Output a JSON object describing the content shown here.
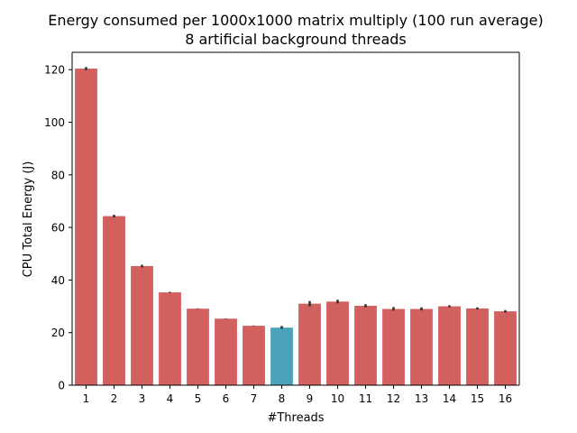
{
  "chart_data": {
    "type": "bar",
    "title": [
      "Energy consumed per 1000x1000 matrix multiply (100 run average)",
      "8 artificial background threads"
    ],
    "xlabel": "#Threads",
    "ylabel": "CPU Total Energy (J)",
    "categories": [
      "1",
      "2",
      "3",
      "4",
      "5",
      "6",
      "7",
      "8",
      "9",
      "10",
      "11",
      "12",
      "13",
      "14",
      "15",
      "16"
    ],
    "values": [
      120.4,
      64.3,
      45.3,
      35.3,
      29.1,
      25.3,
      22.6,
      21.9,
      31.0,
      31.8,
      30.2,
      29.0,
      29.0,
      30.0,
      29.2,
      28.1
    ],
    "error_low": [
      119.8,
      63.8,
      44.8,
      35.1,
      29.0,
      25.2,
      22.5,
      21.4,
      30.0,
      31.1,
      29.6,
      28.3,
      28.4,
      29.6,
      28.8,
      27.6
    ],
    "error_high": [
      121.0,
      64.8,
      45.8,
      35.5,
      29.2,
      25.4,
      22.7,
      22.5,
      32.0,
      32.5,
      30.8,
      29.7,
      29.6,
      30.4,
      29.6,
      28.6
    ],
    "ylim": [
      0,
      126.6
    ],
    "yticks": [
      0,
      20,
      40,
      60,
      80,
      100,
      120
    ],
    "colors": {
      "bar": "#d1605e",
      "highlight_bar": "#4aa3b8",
      "error_bar": "#333333",
      "axis": "#000000"
    },
    "highlight_index": 7,
    "grid": false,
    "legend": "none"
  }
}
